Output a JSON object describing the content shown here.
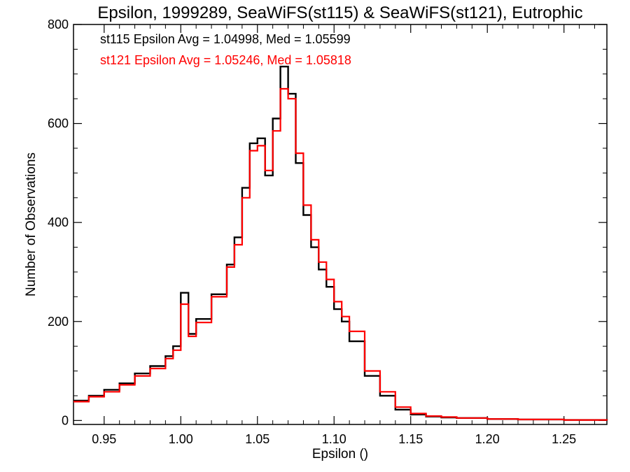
{
  "chart_data": {
    "type": "line",
    "title": "Epsilon, 1999289, SeaWiFS(st115) & SeaWiFS(st121), Eutrophic",
    "xlabel": "Epsilon ()",
    "ylabel": "Number of Observations",
    "xlim": [
      0.93,
      1.278
    ],
    "ylim": [
      -8,
      800
    ],
    "xticks": [
      0.95,
      1.0,
      1.05,
      1.1,
      1.15,
      1.2,
      1.25
    ],
    "xtick_labels": [
      "0.95",
      "1.00",
      "1.05",
      "1.10",
      "1.15",
      "1.20",
      "1.25"
    ],
    "yticks": [
      0,
      200,
      400,
      600,
      800
    ],
    "ytick_labels": [
      "0",
      "200",
      "400",
      "600",
      "800"
    ],
    "step": true,
    "grid": false,
    "legend_position": "top-left",
    "series": [
      {
        "name": "st115",
        "legend": "st115 Epsilon Avg = 1.04998, Med = 1.05599",
        "color": "#000000",
        "x": [
          0.93,
          0.94,
          0.95,
          0.96,
          0.97,
          0.98,
          0.99,
          0.995,
          1.0,
          1.005,
          1.01,
          1.02,
          1.03,
          1.035,
          1.04,
          1.045,
          1.05,
          1.055,
          1.06,
          1.065,
          1.07,
          1.075,
          1.08,
          1.085,
          1.09,
          1.095,
          1.1,
          1.105,
          1.11,
          1.12,
          1.13,
          1.14,
          1.15,
          1.16,
          1.17,
          1.18,
          1.2,
          1.22,
          1.25,
          1.278
        ],
        "y": [
          40,
          50,
          62,
          75,
          95,
          110,
          130,
          150,
          258,
          175,
          205,
          255,
          315,
          370,
          470,
          560,
          570,
          495,
          610,
          715,
          660,
          520,
          415,
          350,
          305,
          270,
          225,
          200,
          160,
          90,
          50,
          22,
          12,
          8,
          6,
          5,
          3,
          2,
          1,
          0
        ]
      },
      {
        "name": "st121",
        "legend": "st121 Epsilon Avg = 1.05246, Med = 1.05818",
        "color": "#ff0000",
        "x": [
          0.93,
          0.94,
          0.95,
          0.96,
          0.97,
          0.98,
          0.99,
          0.995,
          1.0,
          1.005,
          1.01,
          1.02,
          1.03,
          1.035,
          1.04,
          1.045,
          1.05,
          1.055,
          1.06,
          1.065,
          1.07,
          1.075,
          1.08,
          1.085,
          1.09,
          1.095,
          1.1,
          1.105,
          1.11,
          1.12,
          1.13,
          1.14,
          1.15,
          1.16,
          1.17,
          1.18,
          1.2,
          1.22,
          1.25,
          1.278
        ],
        "y": [
          38,
          48,
          58,
          72,
          90,
          105,
          125,
          142,
          235,
          170,
          198,
          250,
          310,
          355,
          450,
          545,
          555,
          505,
          585,
          670,
          650,
          540,
          435,
          365,
          320,
          285,
          240,
          210,
          180,
          100,
          58,
          27,
          14,
          9,
          7,
          5,
          3,
          2,
          1,
          0
        ]
      }
    ]
  }
}
